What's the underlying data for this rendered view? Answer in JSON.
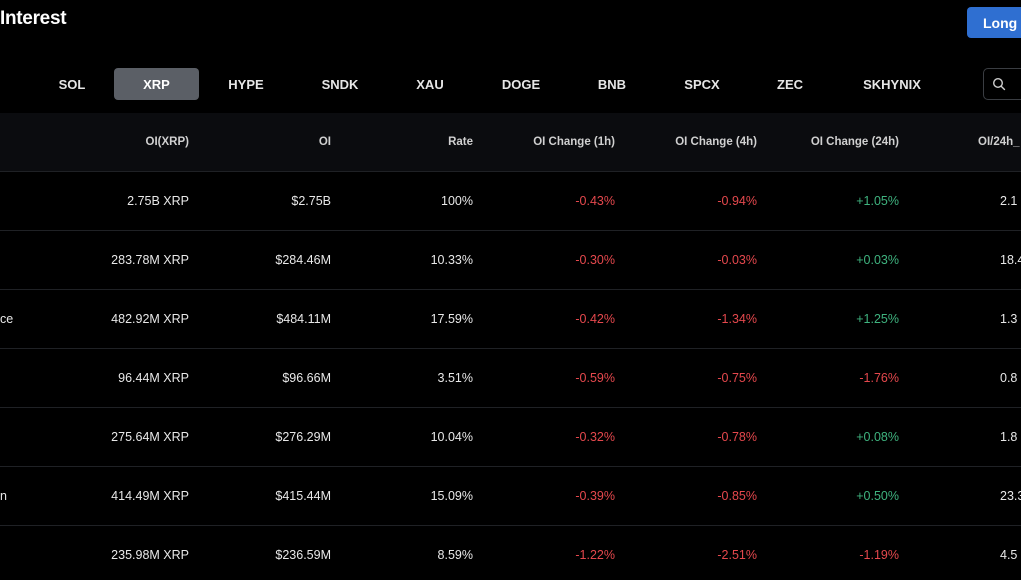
{
  "header": {
    "title": "Interest",
    "long_button": "Long"
  },
  "tabs": [
    {
      "label": "SOL"
    },
    {
      "label": "XRP",
      "active": true
    },
    {
      "label": "HYPE"
    },
    {
      "label": "SNDK"
    },
    {
      "label": "XAU"
    },
    {
      "label": "DOGE"
    },
    {
      "label": "BNB"
    },
    {
      "label": "SPCX"
    },
    {
      "label": "ZEC"
    },
    {
      "label": "SKHYNIX"
    }
  ],
  "search": {
    "icon": "search-icon"
  },
  "table": {
    "columns": [
      "OI(XRP)",
      "OI",
      "Rate",
      "OI Change (1h)",
      "OI Change (4h)",
      "OI Change (24h)",
      "OI/24h_"
    ],
    "rows": [
      {
        "exchange": "",
        "oi_xrp": "2.75B XRP",
        "oi": "$2.75B",
        "rate": "100%",
        "ch1h": "-0.43%",
        "ch4h": "-0.94%",
        "ch24h": "+1.05%",
        "vol": "2.1"
      },
      {
        "exchange": "",
        "oi_xrp": "283.78M XRP",
        "oi": "$284.46M",
        "rate": "10.33%",
        "ch1h": "-0.30%",
        "ch4h": "-0.03%",
        "ch24h": "+0.03%",
        "vol": "18.4"
      },
      {
        "exchange": "ce",
        "oi_xrp": "482.92M XRP",
        "oi": "$484.11M",
        "rate": "17.59%",
        "ch1h": "-0.42%",
        "ch4h": "-1.34%",
        "ch24h": "+1.25%",
        "vol": "1.3"
      },
      {
        "exchange": "",
        "oi_xrp": "96.44M XRP",
        "oi": "$96.66M",
        "rate": "3.51%",
        "ch1h": "-0.59%",
        "ch4h": "-0.75%",
        "ch24h": "-1.76%",
        "vol": "0.8"
      },
      {
        "exchange": "",
        "oi_xrp": "275.64M XRP",
        "oi": "$276.29M",
        "rate": "10.04%",
        "ch1h": "-0.32%",
        "ch4h": "-0.78%",
        "ch24h": "+0.08%",
        "vol": "1.8"
      },
      {
        "exchange": "n",
        "oi_xrp": "414.49M XRP",
        "oi": "$415.44M",
        "rate": "15.09%",
        "ch1h": "-0.39%",
        "ch4h": "-0.85%",
        "ch24h": "+0.50%",
        "vol": "23.3"
      },
      {
        "exchange": "",
        "oi_xrp": "235.98M XRP",
        "oi": "$236.59M",
        "rate": "8.59%",
        "ch1h": "-1.22%",
        "ch4h": "-2.51%",
        "ch24h": "-1.19%",
        "vol": "4.5"
      }
    ]
  },
  "colors": {
    "positive": "#3fb37f",
    "negative": "#e5484d",
    "accent": "#2f6fd1"
  }
}
